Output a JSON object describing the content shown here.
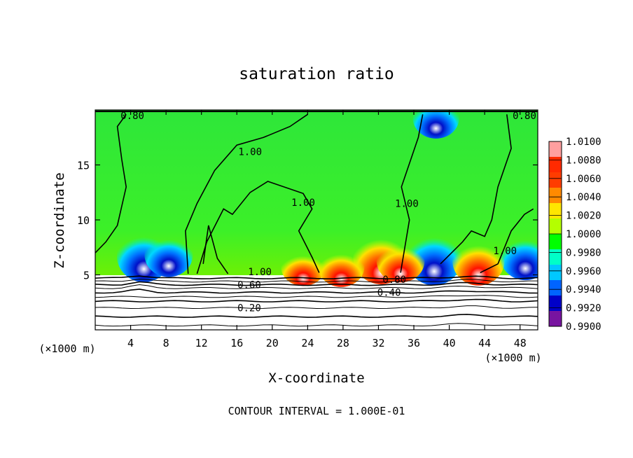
{
  "chart_data": {
    "type": "heatmap",
    "title": "saturation ratio",
    "xlabel": "X-coordinate",
    "ylabel": "Z-coordinate",
    "x_unit_left": "(×1000 m)",
    "x_unit_right": "(×1000 m)",
    "footer": "CONTOUR INTERVAL = 1.000E-01",
    "xlim": [
      0,
      50
    ],
    "ylim": [
      0,
      20
    ],
    "x_ticks": [
      4,
      8,
      12,
      16,
      20,
      24,
      28,
      32,
      36,
      40,
      44,
      48
    ],
    "x_tick_labels": [
      "4",
      "8",
      "12",
      "16",
      "20",
      "24",
      "28",
      "32",
      "36",
      "40",
      "44",
      "48"
    ],
    "y_ticks": [
      5,
      10,
      15
    ],
    "y_tick_labels": [
      "5",
      "10",
      "15"
    ],
    "colorbar": {
      "levels": [
        "1.0100",
        "1.0080",
        "1.0060",
        "1.0040",
        "1.0020",
        "1.0000",
        "0.9980",
        "0.9960",
        "0.9940",
        "0.9920",
        "0.9900"
      ],
      "colors": [
        "#ff9f9f",
        "#ff2a00",
        "#ff3c00",
        "#ff8a00",
        "#ffe600",
        "#b4ff00",
        "#00ff00",
        "#00ffc8",
        "#00c8ff",
        "#0064ff",
        "#0000c8",
        "#7814a0"
      ]
    },
    "contour_interval": 0.1,
    "contour_labels": [
      {
        "text": "0.80",
        "x": 4.2,
        "z": 19.5
      },
      {
        "text": "0.80",
        "x": 48.5,
        "z": 19.5
      },
      {
        "text": "1.00",
        "x": 17.5,
        "z": 16.2
      },
      {
        "text": "1.00",
        "x": 23.5,
        "z": 11.6
      },
      {
        "text": "1.00",
        "x": 35.2,
        "z": 11.5
      },
      {
        "text": "1.00",
        "x": 46.3,
        "z": 7.2
      },
      {
        "text": "1.00",
        "x": 18.6,
        "z": 5.3
      },
      {
        "text": "0.60",
        "x": 17.4,
        "z": 4.1
      },
      {
        "text": "0.80",
        "x": 33.8,
        "z": 4.6
      },
      {
        "text": "0.40",
        "x": 33.2,
        "z": 3.4
      },
      {
        "text": "0.20",
        "x": 17.4,
        "z": 2.0
      }
    ],
    "lower_contours_z": [
      4.7,
      4.4,
      4.1,
      3.8,
      3.4,
      3.0,
      2.6,
      2.0,
      1.2,
      0.4
    ],
    "moist_layer_top_z": 5.0,
    "anomalies": [
      {
        "type": "dry",
        "x": 5.5,
        "z": 5.9,
        "strength": 0.9
      },
      {
        "type": "dry",
        "x": 8.3,
        "z": 6.1,
        "strength": 0.6
      },
      {
        "type": "dry",
        "x": 38.3,
        "z": 5.7,
        "strength": 1.0
      },
      {
        "type": "dry",
        "x": 48.6,
        "z": 5.9,
        "strength": 0.7
      },
      {
        "type": "dry",
        "x": 38.5,
        "z": 18.6,
        "strength": 0.5
      },
      {
        "type": "moist",
        "x": 32.3,
        "z": 5.8,
        "strength": 1.0
      },
      {
        "type": "moist",
        "x": 34.5,
        "z": 5.6,
        "strength": 0.6
      },
      {
        "type": "moist",
        "x": 43.3,
        "z": 5.5,
        "strength": 0.8
      },
      {
        "type": "moist",
        "x": 23.5,
        "z": 5.1,
        "strength": 0.4
      },
      {
        "type": "moist",
        "x": 27.8,
        "z": 5.1,
        "strength": 0.5
      }
    ]
  }
}
